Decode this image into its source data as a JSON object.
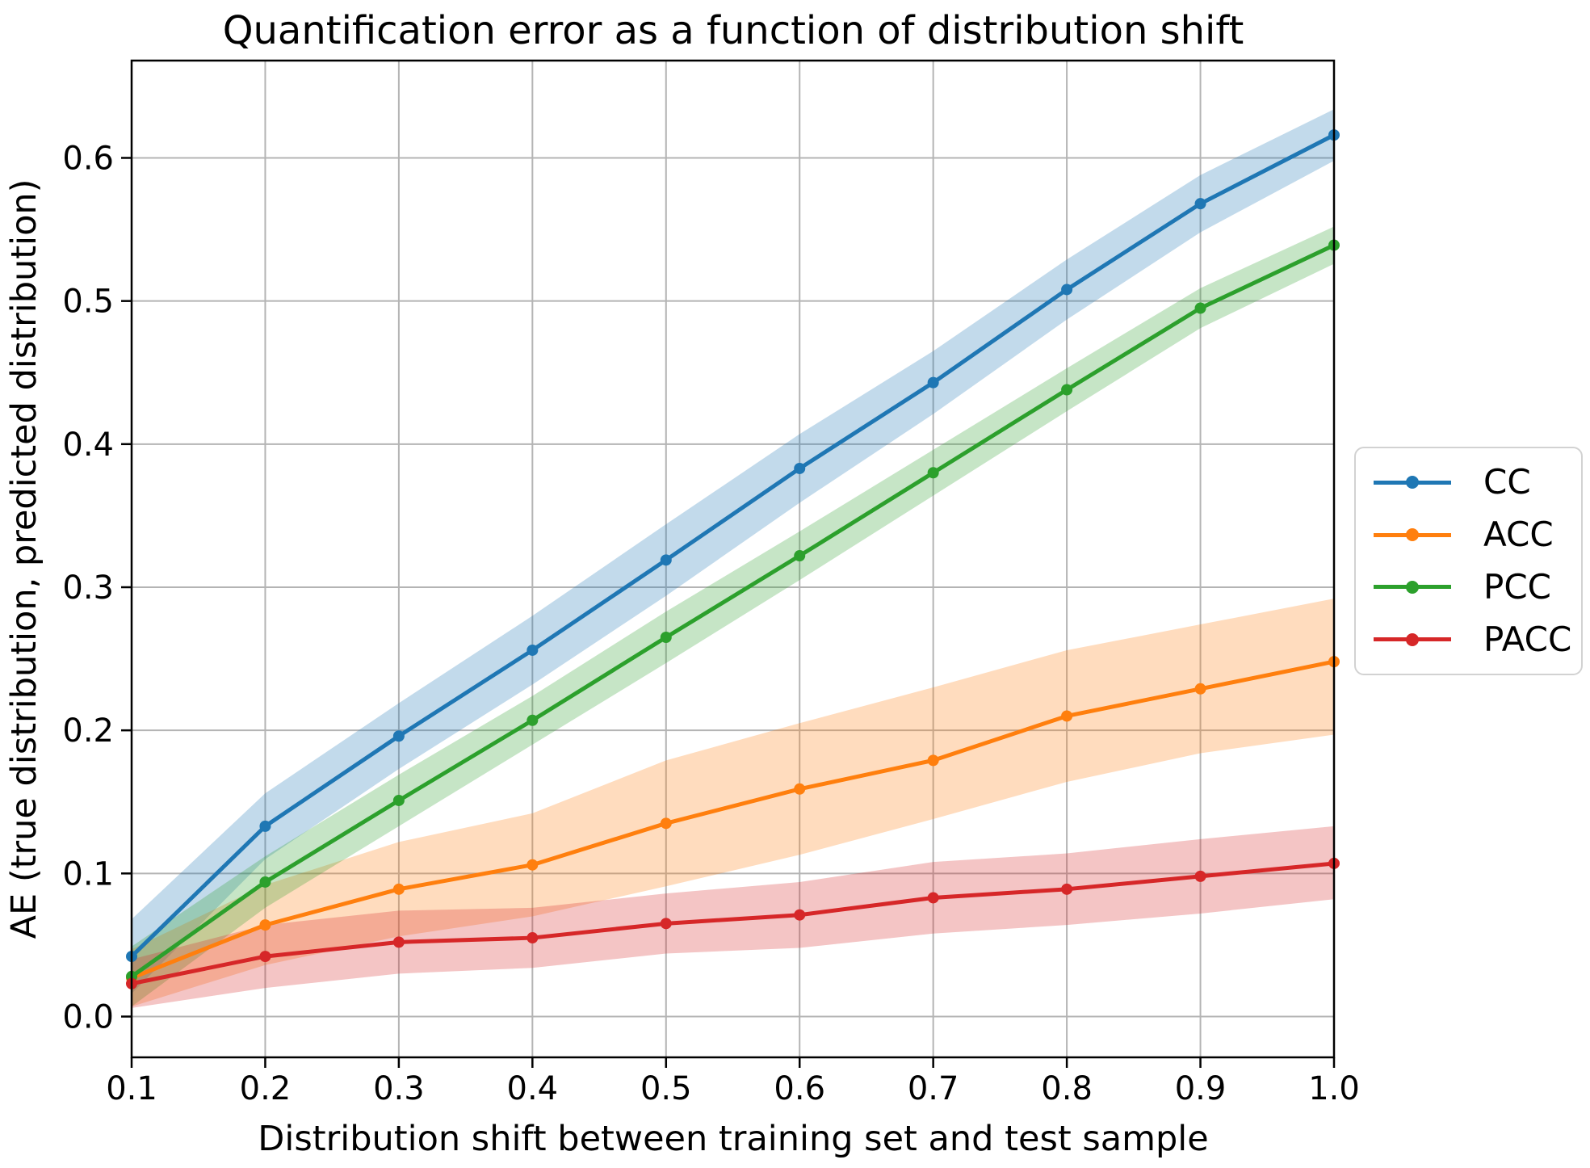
{
  "title": "Quantification error as a function of distribution shift",
  "chart_data": {
    "type": "line",
    "title": "Quantification error as a function of distribution shift",
    "xlabel": "Distribution shift between training set and test sample",
    "ylabel": "AE (true distribution, predicted distribution)",
    "x": [
      0.1,
      0.2,
      0.3,
      0.4,
      0.5,
      0.6,
      0.7,
      0.8,
      0.9,
      1.0
    ],
    "xlim": [
      0.1,
      1.0
    ],
    "ylim": [
      -0.0285,
      0.668
    ],
    "xticks": [
      "0.1",
      "0.2",
      "0.3",
      "0.4",
      "0.5",
      "0.6",
      "0.7",
      "0.8",
      "0.9",
      "1.0"
    ],
    "yticks": [
      "0.0",
      "0.1",
      "0.2",
      "0.3",
      "0.4",
      "0.5",
      "0.6"
    ],
    "grid": true,
    "grid_color": "#b4b4b4",
    "spine_color": "#000000",
    "band_alpha": 0.27,
    "legend_position": "center-right-outside",
    "series": [
      {
        "name": "CC",
        "color": "#1f77b4",
        "values": [
          0.042,
          0.133,
          0.196,
          0.256,
          0.319,
          0.383,
          0.443,
          0.508,
          0.568,
          0.616
        ],
        "band_low": [
          0.016,
          0.11,
          0.173,
          0.232,
          0.294,
          0.359,
          0.421,
          0.487,
          0.548,
          0.598
        ],
        "band_high": [
          0.068,
          0.156,
          0.219,
          0.28,
          0.344,
          0.407,
          0.465,
          0.529,
          0.588,
          0.634
        ]
      },
      {
        "name": "ACC",
        "color": "#ff7f0e",
        "values": [
          0.027,
          0.064,
          0.089,
          0.106,
          0.135,
          0.159,
          0.179,
          0.21,
          0.229,
          0.248
        ],
        "band_low": [
          0.007,
          0.036,
          0.056,
          0.07,
          0.091,
          0.113,
          0.138,
          0.164,
          0.184,
          0.197
        ],
        "band_high": [
          0.047,
          0.092,
          0.122,
          0.142,
          0.179,
          0.205,
          0.23,
          0.256,
          0.274,
          0.292
        ]
      },
      {
        "name": "PCC",
        "color": "#2ca02c",
        "values": [
          0.028,
          0.094,
          0.151,
          0.207,
          0.265,
          0.322,
          0.38,
          0.438,
          0.495,
          0.539
        ],
        "band_low": [
          0.007,
          0.076,
          0.133,
          0.19,
          0.247,
          0.305,
          0.364,
          0.423,
          0.481,
          0.526
        ],
        "band_high": [
          0.049,
          0.112,
          0.169,
          0.224,
          0.283,
          0.339,
          0.396,
          0.453,
          0.509,
          0.552
        ]
      },
      {
        "name": "PACC",
        "color": "#d62728",
        "values": [
          0.023,
          0.042,
          0.052,
          0.055,
          0.065,
          0.071,
          0.083,
          0.089,
          0.098,
          0.107
        ],
        "band_low": [
          0.006,
          0.02,
          0.03,
          0.034,
          0.044,
          0.048,
          0.058,
          0.064,
          0.072,
          0.082
        ],
        "band_high": [
          0.04,
          0.064,
          0.074,
          0.076,
          0.086,
          0.094,
          0.108,
          0.114,
          0.124,
          0.133
        ]
      }
    ]
  }
}
